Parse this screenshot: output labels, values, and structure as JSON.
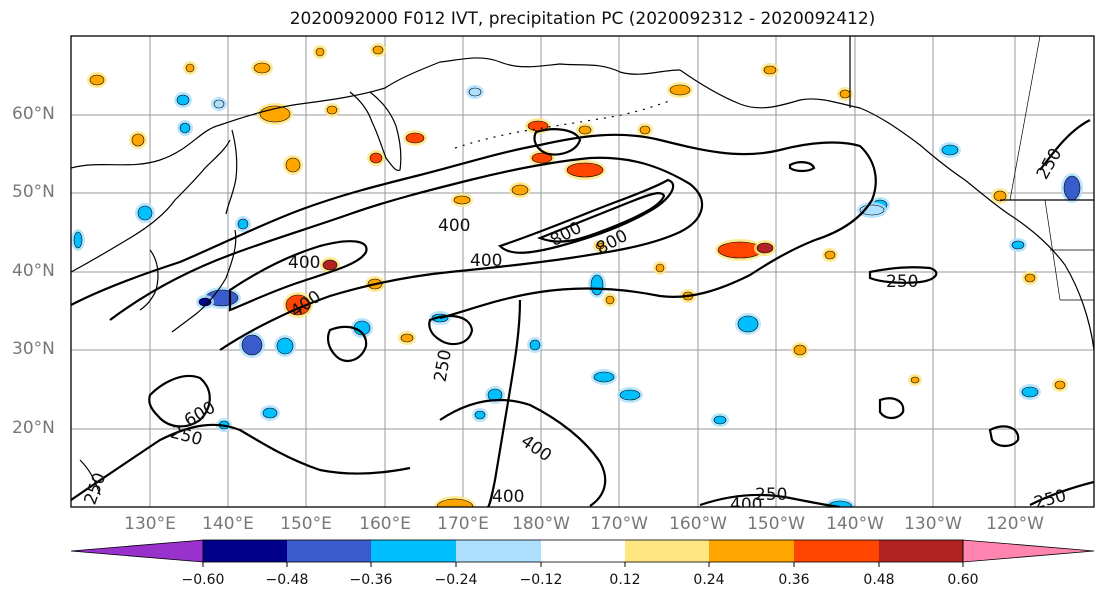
{
  "title": "2020092000 F012 IVT, precipitation PC (2020092312 - 2020092412)",
  "lat_labels": [
    "60°N",
    "50°N",
    "40°N",
    "30°N",
    "20°N"
  ],
  "lon_labels": [
    "130°E",
    "140°E",
    "150°E",
    "160°E",
    "170°E",
    "180°W",
    "170°W",
    "160°W",
    "150°W",
    "140°W",
    "130°W",
    "120°W"
  ],
  "colorbar": {
    "ticks": [
      "−0.60",
      "−0.48",
      "−0.36",
      "−0.24",
      "−0.12",
      "0.12",
      "0.24",
      "0.36",
      "0.48",
      "0.60"
    ],
    "colors": [
      "#9932CC",
      "#00008B",
      "#3A5BCC",
      "#00BFFF",
      "#ADE0FF",
      "#FFFFFF",
      "#FFE680",
      "#FFA500",
      "#FF4500",
      "#B22222",
      "#FF85B0"
    ]
  },
  "contour_labels": [
    "400",
    "400",
    "400",
    "800",
    "800",
    "400",
    "400",
    "600",
    "250",
    "250",
    "250",
    "400",
    "400",
    "250",
    "250",
    "250",
    "400",
    "250"
  ]
}
